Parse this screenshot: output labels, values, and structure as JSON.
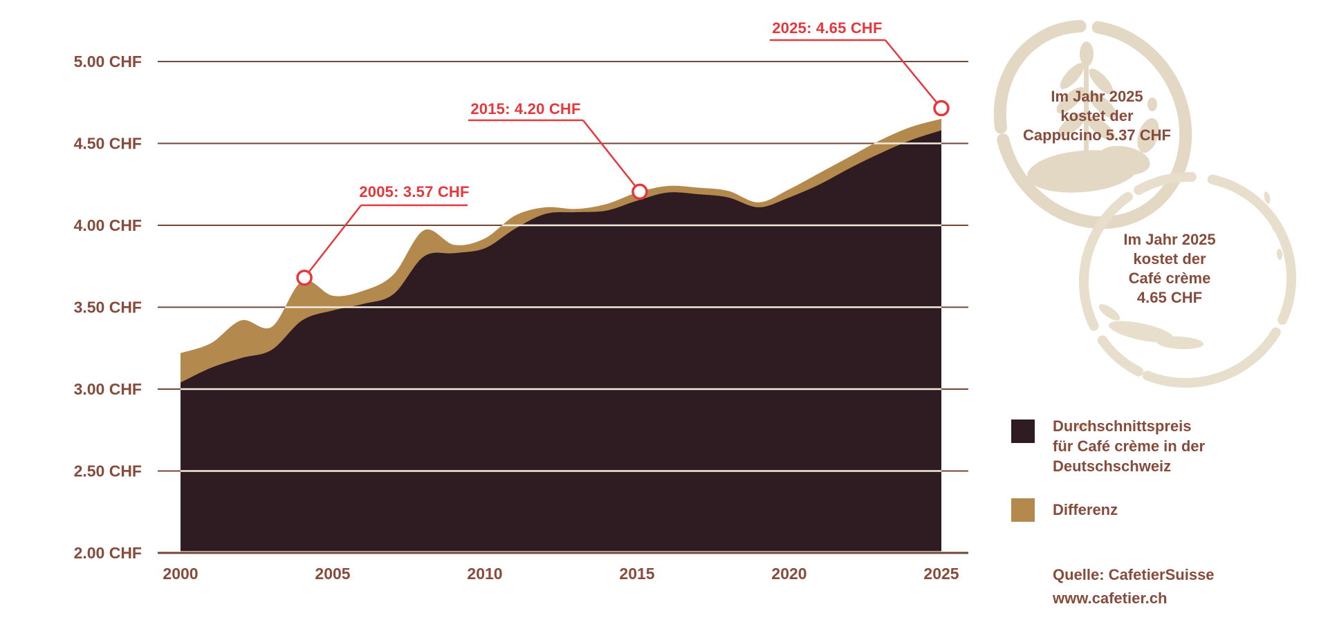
{
  "colors": {
    "background": "#ffffff",
    "area_dark": "#2f1c23",
    "area_differenz": "#b3894d",
    "text_brown": "#874b3b",
    "gridline": "#744539",
    "gridline_on_area": "#f3ecdc",
    "accent_red": "#e8373c",
    "stain": "#e3d8c4",
    "stain_light": "#e7decb"
  },
  "icons": {
    "stain1": "coffee-stain-ring-icon",
    "stain2": "coffee-stain-ring-icon",
    "feather": "latte-feather-icon"
  },
  "chart_data": {
    "type": "area",
    "x_ticks": [
      2000,
      2005,
      2010,
      2015,
      2020,
      2025
    ],
    "y_ticks": [
      "5.00 CHF",
      "4.50 CHF",
      "4.00 CHF",
      "3.50 CHF",
      "3.00 CHF",
      "2.50 CHF",
      "2.00 CHF"
    ],
    "y_tick_values": [
      5.0,
      4.5,
      4.0,
      3.5,
      3.0,
      2.5,
      2.0
    ],
    "ylim": [
      2.0,
      5.0
    ],
    "xlim": [
      2000,
      2025
    ],
    "grid": "horizontal",
    "legend_position": "right-bottom",
    "years": [
      2000,
      2001,
      2002,
      2003,
      2004,
      2005,
      2006,
      2007,
      2008,
      2009,
      2010,
      2011,
      2012,
      2013,
      2014,
      2015,
      2016,
      2017,
      2018,
      2019,
      2020,
      2021,
      2022,
      2023,
      2024,
      2025
    ],
    "price_total": [
      3.22,
      3.28,
      3.42,
      3.38,
      3.66,
      3.57,
      3.6,
      3.7,
      3.97,
      3.88,
      3.92,
      4.06,
      4.11,
      4.1,
      4.13,
      4.2,
      4.24,
      4.23,
      4.21,
      4.14,
      4.22,
      4.32,
      4.42,
      4.52,
      4.6,
      4.65
    ],
    "differenz": [
      0.18,
      0.15,
      0.23,
      0.14,
      0.24,
      0.09,
      0.08,
      0.12,
      0.16,
      0.05,
      0.06,
      0.08,
      0.04,
      0.02,
      0.04,
      0.05,
      0.04,
      0.04,
      0.04,
      0.03,
      0.05,
      0.07,
      0.07,
      0.08,
      0.08,
      0.07
    ],
    "series": [
      {
        "name": "Durchschnittspreis für Café crème in der Deutschschweiz",
        "color": "#2f1c23"
      },
      {
        "name": "Differenz",
        "color": "#b3894d"
      }
    ],
    "annotations": [
      {
        "year": 2005,
        "value": 3.57,
        "label": "2005: 3.57 CHF"
      },
      {
        "year": 2015,
        "value": 4.2,
        "label": "2015: 4.20 CHF"
      },
      {
        "year": 2025,
        "value": 4.65,
        "label": "2025: 4.65 CHF"
      }
    ]
  },
  "notes": {
    "cappucino": "Im Jahr 2025\nkostet der\nCappucino 5.37 CHF",
    "cafe_creme": "Im Jahr 2025\nkostet der\nCafé crème\n4.65 CHF"
  },
  "legend": {
    "items": [
      {
        "label": "Durchschnittspreis\nfür Café crème in der\nDeutschschweiz",
        "color": "#2f1c23"
      },
      {
        "label": "Differenz",
        "color": "#b3894d"
      }
    ]
  },
  "source": {
    "text": "Quelle: CafetierSuisse\nwww.cafetier.ch"
  }
}
